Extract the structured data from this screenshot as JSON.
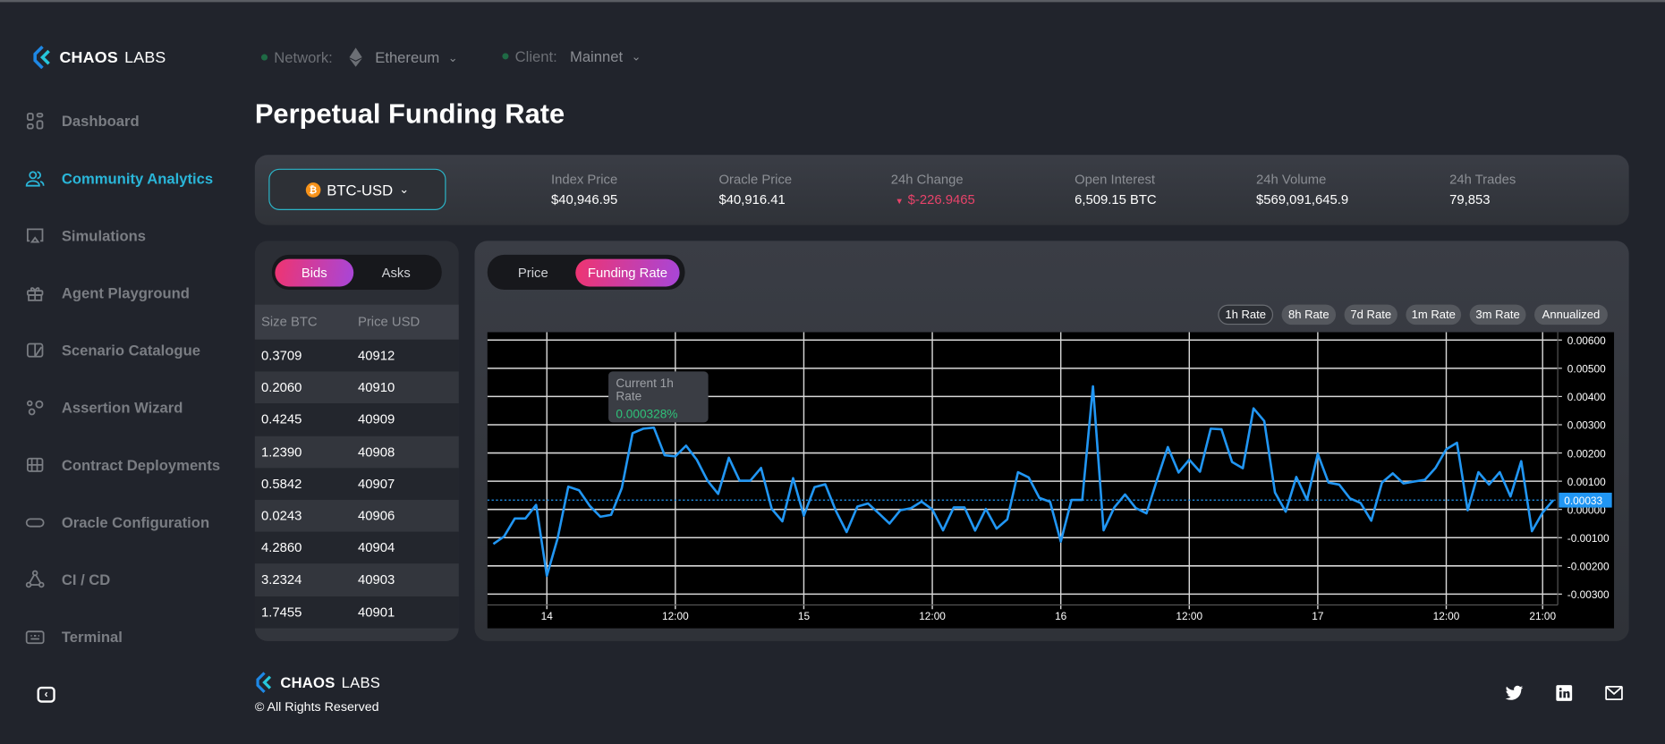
{
  "brand": {
    "name_bold": "CHAOS",
    "name_light": "LABS"
  },
  "topbar": {
    "network_label": "Network:",
    "network_value": "Ethereum",
    "client_label": "Client:",
    "client_value": "Mainnet"
  },
  "page_title": "Perpetual Funding Rate",
  "sidebar": {
    "items": [
      {
        "label": "Dashboard",
        "icon": "dashboard-icon"
      },
      {
        "label": "Community Analytics",
        "icon": "users-icon",
        "active": true
      },
      {
        "label": "Simulations",
        "icon": "monitor-icon"
      },
      {
        "label": "Agent Playground",
        "icon": "gift-icon"
      },
      {
        "label": "Scenario Catalogue",
        "icon": "catalogue-icon"
      },
      {
        "label": "Assertion Wizard",
        "icon": "circles-icon"
      },
      {
        "label": "Contract Deployments",
        "icon": "grid-icon"
      },
      {
        "label": "Oracle Configuration",
        "icon": "pill-icon"
      },
      {
        "label": "CI / CD",
        "icon": "nodes-icon"
      },
      {
        "label": "Terminal",
        "icon": "keyboard-icon"
      }
    ]
  },
  "market": {
    "selected": "BTC-USD",
    "stats": [
      {
        "label": "Index Price",
        "value": "$40,946.95"
      },
      {
        "label": "Oracle Price",
        "value": "$40,916.41"
      },
      {
        "label": "24h Change",
        "value": "$-226.9465"
      },
      {
        "label": "Open Interest",
        "value": "6,509.15 BTC"
      },
      {
        "label": "24h Volume",
        "value": "$569,091,645.9"
      },
      {
        "label": "24h Trades",
        "value": "79,853"
      }
    ]
  },
  "orderbook": {
    "tabs": [
      "Bids",
      "Asks"
    ],
    "active_tab": "Bids",
    "headers": [
      "Size BTC",
      "Price USD"
    ],
    "rows": [
      [
        "0.3709",
        "40912"
      ],
      [
        "0.2060",
        "40910"
      ],
      [
        "0.4245",
        "40909"
      ],
      [
        "1.2390",
        "40908"
      ],
      [
        "0.5842",
        "40907"
      ],
      [
        "0.0243",
        "40906"
      ],
      [
        "4.2860",
        "40904"
      ],
      [
        "3.2324",
        "40903"
      ],
      [
        "1.7455",
        "40901"
      ]
    ]
  },
  "chart_panel": {
    "tabs": [
      "Price",
      "Funding Rate"
    ],
    "active_tab": "Funding Rate",
    "rate_buttons": [
      "1h Rate",
      "8h Rate",
      "7d Rate",
      "1m Rate",
      "3m Rate",
      "Annualized"
    ],
    "selected_rate": "1h Rate",
    "tooltip": {
      "title": "Current 1h Rate",
      "value": "0.000328%"
    }
  },
  "colors": {
    "accent": "#2ab6d9",
    "line": "#2196f3",
    "negative": "#e8436a",
    "positive": "#2fc27a"
  },
  "chart_data": {
    "type": "line",
    "title": "",
    "xlabel": "",
    "ylabel": "",
    "x_unit": "hours from day 14 00:00",
    "x_start": -5,
    "x_step": 1,
    "x_ticks": [
      {
        "h": 0,
        "label": "14"
      },
      {
        "h": 12,
        "label": "12:00"
      },
      {
        "h": 24,
        "label": "15"
      },
      {
        "h": 36,
        "label": "12:00"
      },
      {
        "h": 48,
        "label": "16"
      },
      {
        "h": 60,
        "label": "12:00"
      },
      {
        "h": 72,
        "label": "17"
      },
      {
        "h": 84,
        "label": "12:00"
      },
      {
        "h": 93,
        "label": "21:00"
      }
    ],
    "ylim": [
      -0.0033,
      0.0063
    ],
    "y_ticks": [
      "0.00600",
      "0.00500",
      "0.00400",
      "0.00300",
      "0.00200",
      "0.00100",
      "0.00000",
      "-0.00100",
      "-0.00200",
      "-0.00300"
    ],
    "current_value": 0.00033,
    "current_label": "0.00033",
    "grid": true,
    "series": [
      {
        "name": "1h Rate",
        "values": [
          -0.00122,
          -0.00096,
          -0.00032,
          -0.00032,
          0.00016,
          -0.00235,
          -0.00103,
          0.00081,
          0.00068,
          0.00013,
          -0.00026,
          -0.00019,
          0.00076,
          0.0027,
          0.00286,
          0.0029,
          0.00192,
          0.00188,
          0.00226,
          0.00176,
          0.00102,
          0.00055,
          0.00183,
          0.00102,
          0.00102,
          0.00147,
          2e-05,
          -0.00042,
          0.00111,
          -0.00022,
          0.00079,
          0.00089,
          -6e-05,
          -0.0008,
          0.0001,
          0.00021,
          -0.00014,
          -0.0005,
          -3e-05,
          4e-05,
          0.00028,
          0,
          -0.00074,
          7e-05,
          7e-05,
          -0.00075,
          2e-05,
          -0.00068,
          -0.00035,
          0.00132,
          0.00113,
          0.00041,
          0.00027,
          -0.00114,
          0.00034,
          0.00034,
          0.00436,
          -0.00074,
          7e-05,
          0.00053,
          5e-05,
          -0.00014,
          0.00107,
          0.00221,
          0.00131,
          0.00176,
          0.00134,
          0.00286,
          0.00284,
          0.00168,
          0.00146,
          0.00358,
          0.00313,
          0.0006,
          -8e-05,
          0.00115,
          0.00034,
          0.00197,
          0.00095,
          0.00088,
          0.00039,
          0.00023,
          -0.0004,
          0.00095,
          0.00128,
          0.00092,
          0.00099,
          0.00105,
          0.00147,
          0.00213,
          0.00236,
          -3e-05,
          0.00132,
          0.00088,
          0.00132,
          0.00046,
          0.00171,
          -0.00077,
          -0.00011,
          0.00033
        ]
      }
    ]
  },
  "footer": {
    "copyright": "© All Rights Reserved"
  }
}
